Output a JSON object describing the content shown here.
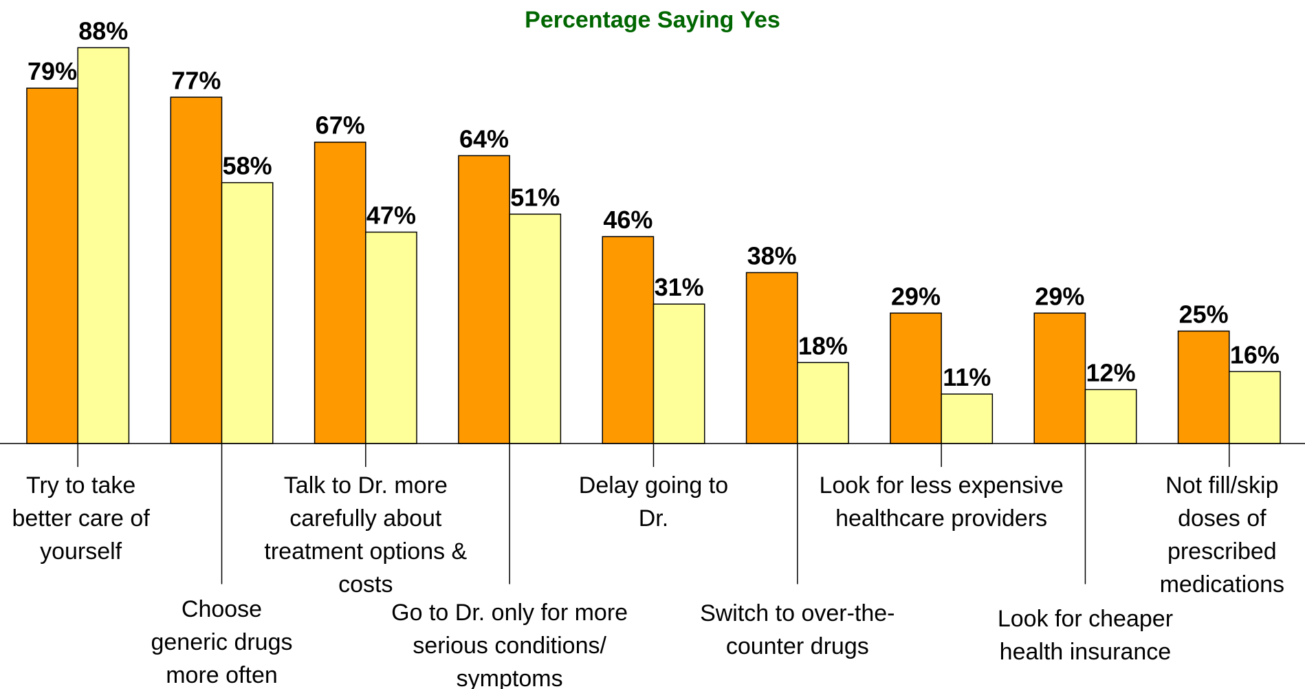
{
  "chart_data": {
    "type": "bar",
    "title": "Percentage Saying Yes",
    "title_color": "#006600",
    "categories": [
      "Try to take better care of yourself",
      "Choose generic drugs more often",
      "Talk to Dr. more carefully about treatment options & costs",
      "Go to Dr. only for more serious conditions/ symptoms",
      "Delay going to Dr.",
      "Switch to over-the-counter drugs",
      "Look for less expensive healthcare providers",
      "Look for cheaper health insurance",
      "Not fill/skip doses of prescribed medications"
    ],
    "series": [
      {
        "color": "#ff9900",
        "values": [
          79,
          77,
          67,
          64,
          46,
          38,
          29,
          29,
          25
        ],
        "value_labels": [
          "79%",
          "77%",
          "67%",
          "64%",
          "46%",
          "38%",
          "29%",
          "29%",
          "25%"
        ]
      },
      {
        "color": "#ffff99",
        "values": [
          88,
          58,
          47,
          51,
          31,
          18,
          11,
          12,
          16
        ],
        "value_labels": [
          "88%",
          "58%",
          "47%",
          "51%",
          "31%",
          "18%",
          "11%",
          "12%",
          "16%"
        ]
      }
    ]
  }
}
